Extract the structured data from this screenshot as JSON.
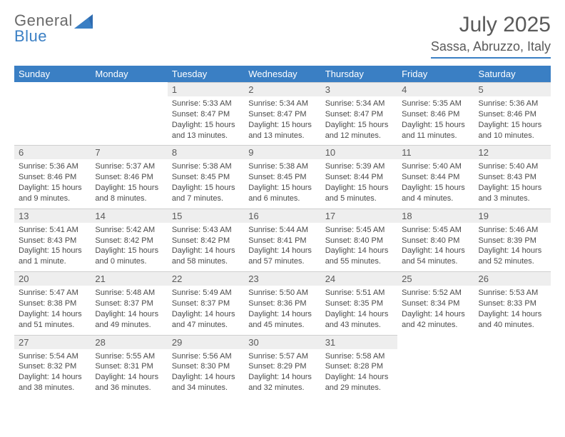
{
  "brand": {
    "word1": "General",
    "word2": "Blue",
    "word1_color": "#6a6a6a",
    "word2_color": "#3a7fc4"
  },
  "title": "July 2025",
  "location": "Sassa, Abruzzo, Italy",
  "colors": {
    "accent": "#3a7fc4",
    "header_bg": "#3a7fc4",
    "header_text": "#ffffff",
    "daynum_bg": "#eeeeee",
    "text": "#4a4a4a",
    "rule": "#3a7fc4"
  },
  "weekdays": [
    "Sunday",
    "Monday",
    "Tuesday",
    "Wednesday",
    "Thursday",
    "Friday",
    "Saturday"
  ],
  "weeks": [
    [
      {
        "day": null
      },
      {
        "day": null
      },
      {
        "day": "1",
        "sunrise": "Sunrise: 5:33 AM",
        "sunset": "Sunset: 8:47 PM",
        "daylight": "Daylight: 15 hours and 13 minutes."
      },
      {
        "day": "2",
        "sunrise": "Sunrise: 5:34 AM",
        "sunset": "Sunset: 8:47 PM",
        "daylight": "Daylight: 15 hours and 13 minutes."
      },
      {
        "day": "3",
        "sunrise": "Sunrise: 5:34 AM",
        "sunset": "Sunset: 8:47 PM",
        "daylight": "Daylight: 15 hours and 12 minutes."
      },
      {
        "day": "4",
        "sunrise": "Sunrise: 5:35 AM",
        "sunset": "Sunset: 8:46 PM",
        "daylight": "Daylight: 15 hours and 11 minutes."
      },
      {
        "day": "5",
        "sunrise": "Sunrise: 5:36 AM",
        "sunset": "Sunset: 8:46 PM",
        "daylight": "Daylight: 15 hours and 10 minutes."
      }
    ],
    [
      {
        "day": "6",
        "sunrise": "Sunrise: 5:36 AM",
        "sunset": "Sunset: 8:46 PM",
        "daylight": "Daylight: 15 hours and 9 minutes."
      },
      {
        "day": "7",
        "sunrise": "Sunrise: 5:37 AM",
        "sunset": "Sunset: 8:46 PM",
        "daylight": "Daylight: 15 hours and 8 minutes."
      },
      {
        "day": "8",
        "sunrise": "Sunrise: 5:38 AM",
        "sunset": "Sunset: 8:45 PM",
        "daylight": "Daylight: 15 hours and 7 minutes."
      },
      {
        "day": "9",
        "sunrise": "Sunrise: 5:38 AM",
        "sunset": "Sunset: 8:45 PM",
        "daylight": "Daylight: 15 hours and 6 minutes."
      },
      {
        "day": "10",
        "sunrise": "Sunrise: 5:39 AM",
        "sunset": "Sunset: 8:44 PM",
        "daylight": "Daylight: 15 hours and 5 minutes."
      },
      {
        "day": "11",
        "sunrise": "Sunrise: 5:40 AM",
        "sunset": "Sunset: 8:44 PM",
        "daylight": "Daylight: 15 hours and 4 minutes."
      },
      {
        "day": "12",
        "sunrise": "Sunrise: 5:40 AM",
        "sunset": "Sunset: 8:43 PM",
        "daylight": "Daylight: 15 hours and 3 minutes."
      }
    ],
    [
      {
        "day": "13",
        "sunrise": "Sunrise: 5:41 AM",
        "sunset": "Sunset: 8:43 PM",
        "daylight": "Daylight: 15 hours and 1 minute."
      },
      {
        "day": "14",
        "sunrise": "Sunrise: 5:42 AM",
        "sunset": "Sunset: 8:42 PM",
        "daylight": "Daylight: 15 hours and 0 minutes."
      },
      {
        "day": "15",
        "sunrise": "Sunrise: 5:43 AM",
        "sunset": "Sunset: 8:42 PM",
        "daylight": "Daylight: 14 hours and 58 minutes."
      },
      {
        "day": "16",
        "sunrise": "Sunrise: 5:44 AM",
        "sunset": "Sunset: 8:41 PM",
        "daylight": "Daylight: 14 hours and 57 minutes."
      },
      {
        "day": "17",
        "sunrise": "Sunrise: 5:45 AM",
        "sunset": "Sunset: 8:40 PM",
        "daylight": "Daylight: 14 hours and 55 minutes."
      },
      {
        "day": "18",
        "sunrise": "Sunrise: 5:45 AM",
        "sunset": "Sunset: 8:40 PM",
        "daylight": "Daylight: 14 hours and 54 minutes."
      },
      {
        "day": "19",
        "sunrise": "Sunrise: 5:46 AM",
        "sunset": "Sunset: 8:39 PM",
        "daylight": "Daylight: 14 hours and 52 minutes."
      }
    ],
    [
      {
        "day": "20",
        "sunrise": "Sunrise: 5:47 AM",
        "sunset": "Sunset: 8:38 PM",
        "daylight": "Daylight: 14 hours and 51 minutes."
      },
      {
        "day": "21",
        "sunrise": "Sunrise: 5:48 AM",
        "sunset": "Sunset: 8:37 PM",
        "daylight": "Daylight: 14 hours and 49 minutes."
      },
      {
        "day": "22",
        "sunrise": "Sunrise: 5:49 AM",
        "sunset": "Sunset: 8:37 PM",
        "daylight": "Daylight: 14 hours and 47 minutes."
      },
      {
        "day": "23",
        "sunrise": "Sunrise: 5:50 AM",
        "sunset": "Sunset: 8:36 PM",
        "daylight": "Daylight: 14 hours and 45 minutes."
      },
      {
        "day": "24",
        "sunrise": "Sunrise: 5:51 AM",
        "sunset": "Sunset: 8:35 PM",
        "daylight": "Daylight: 14 hours and 43 minutes."
      },
      {
        "day": "25",
        "sunrise": "Sunrise: 5:52 AM",
        "sunset": "Sunset: 8:34 PM",
        "daylight": "Daylight: 14 hours and 42 minutes."
      },
      {
        "day": "26",
        "sunrise": "Sunrise: 5:53 AM",
        "sunset": "Sunset: 8:33 PM",
        "daylight": "Daylight: 14 hours and 40 minutes."
      }
    ],
    [
      {
        "day": "27",
        "sunrise": "Sunrise: 5:54 AM",
        "sunset": "Sunset: 8:32 PM",
        "daylight": "Daylight: 14 hours and 38 minutes."
      },
      {
        "day": "28",
        "sunrise": "Sunrise: 5:55 AM",
        "sunset": "Sunset: 8:31 PM",
        "daylight": "Daylight: 14 hours and 36 minutes."
      },
      {
        "day": "29",
        "sunrise": "Sunrise: 5:56 AM",
        "sunset": "Sunset: 8:30 PM",
        "daylight": "Daylight: 14 hours and 34 minutes."
      },
      {
        "day": "30",
        "sunrise": "Sunrise: 5:57 AM",
        "sunset": "Sunset: 8:29 PM",
        "daylight": "Daylight: 14 hours and 32 minutes."
      },
      {
        "day": "31",
        "sunrise": "Sunrise: 5:58 AM",
        "sunset": "Sunset: 8:28 PM",
        "daylight": "Daylight: 14 hours and 29 minutes."
      },
      {
        "day": null
      },
      {
        "day": null
      }
    ]
  ]
}
